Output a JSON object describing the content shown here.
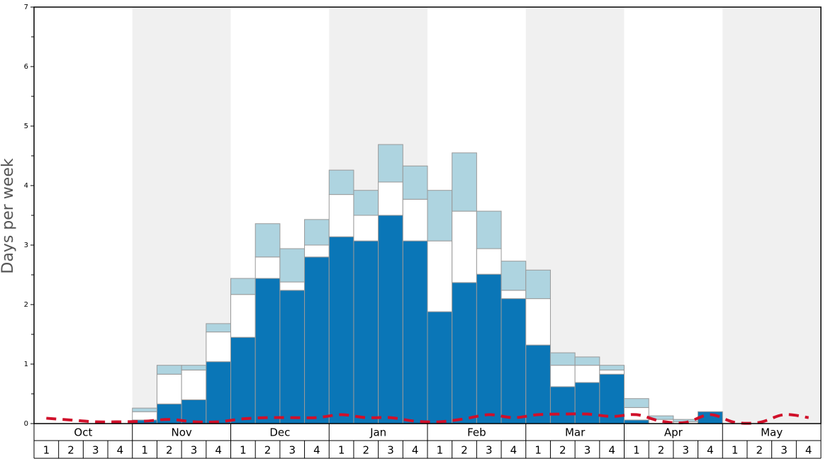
{
  "chart_data": {
    "type": "stacked_bar",
    "y_label": "Days per week",
    "months": [
      "Oct",
      "Nov",
      "Dec",
      "Jan",
      "Feb",
      "Mar",
      "Apr",
      "May"
    ],
    "categories": [
      "1",
      "2",
      "3",
      "4",
      "1",
      "2",
      "3",
      "4",
      "1",
      "2",
      "3",
      "4",
      "1",
      "2",
      "3",
      "4",
      "1",
      "2",
      "3",
      "4",
      "1",
      "2",
      "3",
      "4",
      "1",
      "2",
      "3",
      "4",
      "1",
      "2",
      "3",
      "4"
    ],
    "series": [
      {
        "color": "#0a76b7",
        "values": [
          0,
          0,
          0,
          0,
          0.06,
          0.33,
          0.4,
          1.04,
          1.45,
          2.44,
          2.24,
          2.8,
          3.14,
          3.07,
          3.5,
          3.07,
          1.88,
          2.37,
          2.51,
          2.1,
          1.32,
          0.62,
          0.69,
          0.83,
          0.06,
          0,
          0,
          0.2,
          0,
          0,
          0,
          0
        ]
      },
      {
        "color": "#ffffff",
        "values": [
          0,
          0,
          0,
          0,
          0.14,
          0.5,
          0.5,
          0.5,
          0.72,
          0.36,
          0.14,
          0.2,
          0.71,
          0.43,
          0.56,
          0.7,
          1.19,
          1.2,
          0.43,
          0.14,
          0.78,
          0.36,
          0.29,
          0.07,
          0.21,
          0.07,
          0.03,
          0,
          0,
          0,
          0,
          0
        ]
      },
      {
        "color": "#aed4e0",
        "values": [
          0,
          0,
          0,
          0,
          0.06,
          0.15,
          0.08,
          0.14,
          0.27,
          0.56,
          0.56,
          0.43,
          0.41,
          0.42,
          0.63,
          0.56,
          0.85,
          0.98,
          0.63,
          0.49,
          0.48,
          0.21,
          0.14,
          0.08,
          0.15,
          0.06,
          0.04,
          0,
          0,
          0,
          0,
          0
        ]
      }
    ],
    "line": {
      "color": "#d0102a",
      "values": [
        0.09,
        0.06,
        0.03,
        0.03,
        0.04,
        0.07,
        0.03,
        0.03,
        0.08,
        0.1,
        0.1,
        0.1,
        0.15,
        0.1,
        0.1,
        0.04,
        0.03,
        0.08,
        0.15,
        0.1,
        0.15,
        0.16,
        0.16,
        0.12,
        0.15,
        0.04,
        0.02,
        0.15,
        0.02,
        0.02,
        0.15,
        0.1
      ]
    },
    "ylim": [
      0,
      7
    ],
    "yticks": [
      0,
      1,
      2,
      3,
      4,
      5,
      6,
      7
    ],
    "minor_yticks": [
      0.5,
      1.5,
      2.5,
      3.5,
      4.5,
      5.5,
      6.5
    ],
    "shade_color": "#f0f0f0"
  }
}
